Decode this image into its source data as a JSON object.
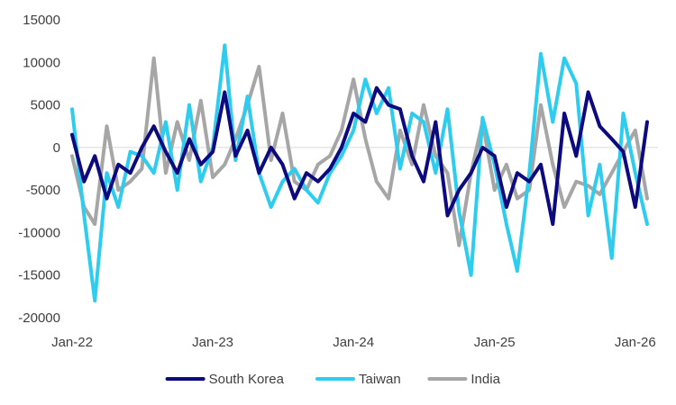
{
  "chart_data": {
    "type": "line",
    "title": "",
    "xlabel": "",
    "ylabel": "",
    "ylim": [
      -20000,
      15000
    ],
    "yticks": [
      15000,
      10000,
      5000,
      0,
      -5000,
      -10000,
      -15000,
      -20000
    ],
    "ytick_labels": [
      "15000",
      "10000",
      "5000",
      "0",
      "-5000",
      "-10000",
      "-15000",
      "-20000"
    ],
    "xlim": [
      "2022-01-01",
      "2026-03-01"
    ],
    "xticks": [
      "2022-01-01",
      "2023-01-01",
      "2024-01-01",
      "2025-01-01",
      "2026-01-01"
    ],
    "xtick_labels": [
      "Jan-22",
      "Jan-23",
      "Jan-24",
      "Jan-25",
      "Jan-26"
    ],
    "legend_position": "bottom",
    "grid": false,
    "x": [
      "2022-01",
      "2022-02",
      "2022-03",
      "2022-04",
      "2022-05",
      "2022-06",
      "2022-07",
      "2022-08",
      "2022-09",
      "2022-10",
      "2022-11",
      "2022-12",
      "2023-01",
      "2023-02",
      "2023-03",
      "2023-04",
      "2023-05",
      "2023-06",
      "2023-07",
      "2023-08",
      "2023-09",
      "2023-10",
      "2023-11",
      "2023-12",
      "2024-01",
      "2024-02",
      "2024-03",
      "2024-04",
      "2024-05",
      "2024-06",
      "2024-07",
      "2024-08",
      "2024-09",
      "2024-10",
      "2024-11",
      "2024-12",
      "2025-01",
      "2025-02",
      "2025-03",
      "2025-04",
      "2025-05",
      "2025-06",
      "2025-07",
      "2025-08",
      "2025-09",
      "2025-10",
      "2025-11",
      "2025-12",
      "2026-01",
      "2026-02"
    ],
    "series": [
      {
        "name": "South Korea",
        "color": "#0d0a80",
        "values": [
          1500,
          -4000,
          -1000,
          -6000,
          -2000,
          -3000,
          0,
          2500,
          -500,
          -3000,
          1000,
          -2000,
          -500,
          6500,
          -1000,
          2000,
          -3000,
          0,
          -2000,
          -6000,
          -3000,
          -4000,
          -2500,
          0,
          4000,
          3000,
          7000,
          5000,
          4500,
          -1000,
          -4000,
          3000,
          -8000,
          -5000,
          -3000,
          0,
          -1000,
          -7000,
          -3000,
          -4000,
          -2000,
          -9000,
          4000,
          -1000,
          6500,
          2500,
          1000,
          -500,
          -7000,
          3000
        ]
      },
      {
        "name": "Taiwan",
        "color": "#2ecdf0",
        "values": [
          4500,
          -8000,
          -18000,
          -3000,
          -7000,
          -500,
          -1000,
          -3000,
          3000,
          -5000,
          5000,
          -4000,
          0,
          12000,
          -1500,
          6000,
          -3000,
          -7000,
          -4000,
          -2500,
          -5000,
          -6500,
          -3000,
          -1000,
          2000,
          8000,
          4000,
          7000,
          -2500,
          4000,
          3000,
          -3000,
          4500,
          -7500,
          -15000,
          3500,
          -2000,
          -9000,
          -14500,
          -3000,
          11000,
          3000,
          10500,
          7500,
          -8000,
          -2000,
          -13000,
          4000,
          -3000,
          -9000
        ]
      },
      {
        "name": "India",
        "color": "#a6a6a6",
        "values": [
          -1000,
          -7000,
          -9000,
          2500,
          -5000,
          -4000,
          -2500,
          10500,
          -3000,
          3000,
          -1500,
          5500,
          -3500,
          -2000,
          1000,
          5000,
          9500,
          -1500,
          4000,
          -4000,
          -5000,
          -2000,
          -1000,
          2000,
          8000,
          1000,
          -4000,
          -6000,
          2000,
          -2000,
          5000,
          -1000,
          -3000,
          -11500,
          -3000,
          3000,
          -5000,
          -2000,
          -6000,
          -5000,
          5000,
          -2000,
          -7000,
          -4000,
          -4500,
          -5500,
          -3000,
          -500,
          2000,
          -6000
        ]
      }
    ]
  }
}
